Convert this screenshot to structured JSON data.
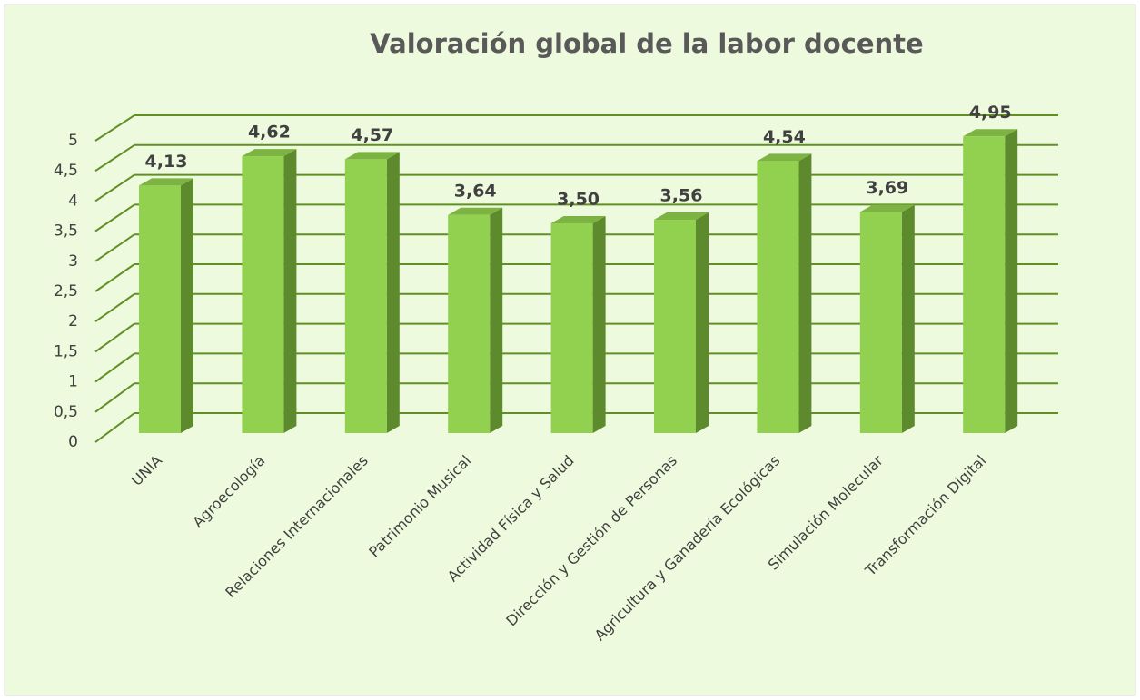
{
  "chart_data": {
    "type": "bar3d",
    "title": "Valoración global de la labor docente",
    "categories": [
      "UNIA",
      "Agroecología",
      "Relaciones Internacionales",
      "Patrimonio Musical",
      "Actividad Física y Salud",
      "Dirección y Gestión de Personas",
      "Agricultura y Ganadería Ecológicas",
      "Simulación Molecular",
      "Transformación Digital"
    ],
    "values": [
      4.13,
      4.62,
      4.57,
      3.64,
      3.5,
      3.56,
      4.54,
      3.69,
      4.95
    ],
    "value_labels": [
      "4,13",
      "4,62",
      "4,57",
      "3,64",
      "3,50",
      "3,56",
      "4,54",
      "3,69",
      "4,95"
    ],
    "color": "#92d050",
    "ylim": [
      0,
      5
    ],
    "yticks": [
      0,
      {
        "value": 0.5,
        "label": "0,5"
      },
      1,
      {
        "value": 1.5,
        "label": "1,5"
      },
      2,
      {
        "value": 2.5,
        "label": "2,5"
      },
      3,
      {
        "value": 3.5,
        "label": "3,5"
      },
      4,
      {
        "value": 4.5,
        "label": "4,5"
      },
      5
    ],
    "grid": true
  }
}
